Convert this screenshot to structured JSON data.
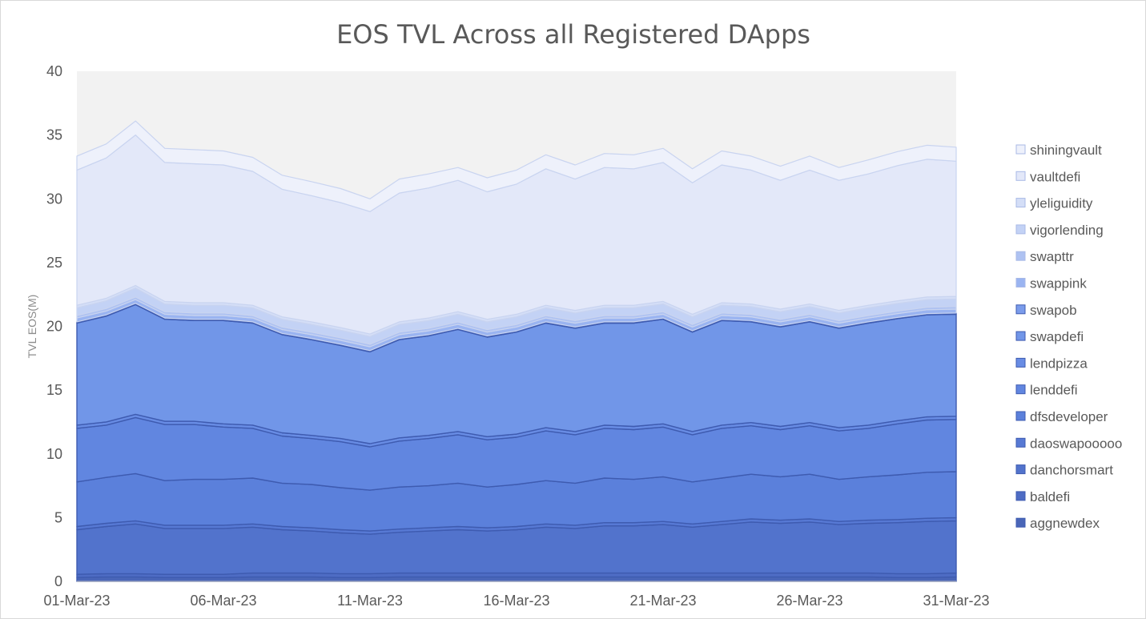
{
  "chart_data": {
    "type": "area",
    "stacked": true,
    "title": "EOS TVL Across all Registered DApps",
    "xlabel": "",
    "ylabel": "TVL EOS(M)",
    "ylim": [
      0,
      40
    ],
    "yticks": [
      0,
      5,
      10,
      15,
      20,
      25,
      30,
      35,
      40
    ],
    "x": [
      "01-Mar-23",
      "02-Mar-23",
      "03-Mar-23",
      "04-Mar-23",
      "05-Mar-23",
      "06-Mar-23",
      "07-Mar-23",
      "08-Mar-23",
      "09-Mar-23",
      "10-Mar-23",
      "11-Mar-23",
      "12-Mar-23",
      "13-Mar-23",
      "14-Mar-23",
      "15-Mar-23",
      "16-Mar-23",
      "17-Mar-23",
      "18-Mar-23",
      "19-Mar-23",
      "20-Mar-23",
      "21-Mar-23",
      "22-Mar-23",
      "23-Mar-23",
      "24-Mar-23",
      "25-Mar-23",
      "26-Mar-23",
      "27-Mar-23",
      "28-Mar-23",
      "29-Mar-23",
      "30-Mar-23",
      "31-Mar-23"
    ],
    "xtick_labels": [
      "01-Mar-23",
      "06-Mar-23",
      "11-Mar-23",
      "16-Mar-23",
      "21-Mar-23",
      "26-Mar-23",
      "31-Mar-23"
    ],
    "xtick_indices": [
      0,
      5,
      10,
      15,
      20,
      25,
      30
    ],
    "grid": false,
    "legend_position": "right",
    "plot_background": "#f2f2f2",
    "series": [
      {
        "name": "aggnewdex",
        "color": "#4a66b8",
        "values": [
          0.3,
          0.35,
          0.35,
          0.3,
          0.3,
          0.3,
          0.35,
          0.35,
          0.35,
          0.3,
          0.3,
          0.35,
          0.35,
          0.35,
          0.35,
          0.35,
          0.35,
          0.35,
          0.35,
          0.35,
          0.35,
          0.35,
          0.35,
          0.35,
          0.35,
          0.35,
          0.35,
          0.35,
          0.3,
          0.3,
          0.35
        ]
      },
      {
        "name": "baldefi",
        "color": "#4e6cc4",
        "values": [
          0.25,
          0.25,
          0.25,
          0.25,
          0.25,
          0.25,
          0.3,
          0.3,
          0.3,
          0.3,
          0.3,
          0.3,
          0.3,
          0.3,
          0.3,
          0.3,
          0.3,
          0.3,
          0.3,
          0.3,
          0.3,
          0.3,
          0.3,
          0.3,
          0.3,
          0.3,
          0.3,
          0.3,
          0.3,
          0.3,
          0.3
        ]
      },
      {
        "name": "danchorsmart",
        "color": "#5273cc",
        "values": [
          3.5,
          3.7,
          3.9,
          3.6,
          3.6,
          3.6,
          3.6,
          3.4,
          3.3,
          3.2,
          3.1,
          3.2,
          3.3,
          3.4,
          3.3,
          3.4,
          3.6,
          3.5,
          3.7,
          3.7,
          3.8,
          3.6,
          3.8,
          4.0,
          3.9,
          4.0,
          3.8,
          3.9,
          4.0,
          4.1,
          4.1
        ]
      },
      {
        "name": "daoswapooooo",
        "color": "#5779d4",
        "values": [
          0.25,
          0.25,
          0.25,
          0.25,
          0.25,
          0.25,
          0.25,
          0.25,
          0.25,
          0.25,
          0.25,
          0.25,
          0.25,
          0.25,
          0.25,
          0.25,
          0.25,
          0.25,
          0.25,
          0.25,
          0.25,
          0.25,
          0.25,
          0.25,
          0.25,
          0.25,
          0.25,
          0.25,
          0.25,
          0.25,
          0.25
        ]
      },
      {
        "name": "dfsdeveloper",
        "color": "#5b80db",
        "values": [
          3.5,
          3.6,
          3.7,
          3.5,
          3.6,
          3.6,
          3.6,
          3.4,
          3.4,
          3.3,
          3.2,
          3.3,
          3.3,
          3.4,
          3.2,
          3.3,
          3.4,
          3.3,
          3.5,
          3.4,
          3.5,
          3.3,
          3.4,
          3.5,
          3.4,
          3.5,
          3.3,
          3.4,
          3.5,
          3.6,
          3.6
        ]
      },
      {
        "name": "lenddefi",
        "color": "#6186e0",
        "values": [
          4.2,
          4.1,
          4.4,
          4.4,
          4.3,
          4.1,
          3.9,
          3.7,
          3.6,
          3.6,
          3.4,
          3.6,
          3.7,
          3.8,
          3.7,
          3.7,
          3.9,
          3.8,
          3.9,
          3.9,
          3.9,
          3.7,
          3.9,
          3.8,
          3.7,
          3.8,
          3.8,
          3.8,
          4.0,
          4.1,
          4.1
        ]
      },
      {
        "name": "lendpizza",
        "color": "#688ce4",
        "values": [
          0.25,
          0.25,
          0.25,
          0.25,
          0.25,
          0.25,
          0.25,
          0.25,
          0.25,
          0.25,
          0.25,
          0.25,
          0.25,
          0.25,
          0.25,
          0.25,
          0.25,
          0.25,
          0.25,
          0.25,
          0.25,
          0.25,
          0.25,
          0.25,
          0.25,
          0.25,
          0.25,
          0.25,
          0.25,
          0.25,
          0.25
        ]
      },
      {
        "name": "swapdefi",
        "color": "#7196e8",
        "values": [
          8.0,
          8.3,
          8.6,
          8.0,
          7.9,
          8.1,
          8.0,
          7.7,
          7.5,
          7.3,
          7.2,
          7.7,
          7.8,
          8.0,
          7.8,
          8.0,
          8.2,
          8.1,
          8.0,
          8.1,
          8.2,
          7.8,
          8.2,
          7.9,
          7.8,
          7.9,
          7.8,
          8.0,
          8.0,
          8.0,
          8.0
        ]
      },
      {
        "name": "swapob",
        "color": "#7b9ceb",
        "values": [
          0.1,
          0.1,
          0.1,
          0.1,
          0.1,
          0.1,
          0.1,
          0.1,
          0.1,
          0.1,
          0.1,
          0.1,
          0.1,
          0.1,
          0.1,
          0.1,
          0.1,
          0.1,
          0.1,
          0.1,
          0.1,
          0.1,
          0.1,
          0.1,
          0.1,
          0.1,
          0.1,
          0.1,
          0.1,
          0.1,
          0.1
        ]
      },
      {
        "name": "swappink",
        "color": "#9ab4f1",
        "values": [
          0.3,
          0.3,
          0.3,
          0.3,
          0.3,
          0.3,
          0.3,
          0.3,
          0.3,
          0.3,
          0.3,
          0.3,
          0.3,
          0.3,
          0.3,
          0.3,
          0.3,
          0.3,
          0.3,
          0.3,
          0.3,
          0.3,
          0.3,
          0.3,
          0.3,
          0.3,
          0.3,
          0.3,
          0.3,
          0.3,
          0.3
        ]
      },
      {
        "name": "swapttr",
        "color": "#aec2f2",
        "values": [
          0.2,
          0.2,
          0.2,
          0.2,
          0.2,
          0.2,
          0.2,
          0.2,
          0.2,
          0.2,
          0.2,
          0.2,
          0.2,
          0.2,
          0.2,
          0.2,
          0.2,
          0.2,
          0.2,
          0.2,
          0.2,
          0.2,
          0.2,
          0.2,
          0.2,
          0.2,
          0.2,
          0.2,
          0.2,
          0.2,
          0.2
        ]
      },
      {
        "name": "vigorlending",
        "color": "#c3d2f5",
        "values": [
          0.6,
          0.6,
          0.7,
          0.6,
          0.6,
          0.6,
          0.6,
          0.6,
          0.6,
          0.6,
          0.6,
          0.6,
          0.6,
          0.6,
          0.6,
          0.6,
          0.6,
          0.6,
          0.6,
          0.6,
          0.6,
          0.6,
          0.6,
          0.6,
          0.6,
          0.6,
          0.6,
          0.6,
          0.6,
          0.6,
          0.6
        ]
      },
      {
        "name": "yleliguidity",
        "color": "#d4def7",
        "values": [
          0.2,
          0.2,
          0.2,
          0.2,
          0.2,
          0.2,
          0.2,
          0.2,
          0.2,
          0.2,
          0.2,
          0.2,
          0.2,
          0.2,
          0.2,
          0.2,
          0.2,
          0.2,
          0.2,
          0.2,
          0.2,
          0.2,
          0.2,
          0.2,
          0.2,
          0.2,
          0.2,
          0.2,
          0.2,
          0.2,
          0.2
        ]
      },
      {
        "name": "vaultdefi",
        "color": "#e3e8f9",
        "values": [
          10.6,
          11.0,
          11.8,
          10.9,
          10.9,
          10.8,
          10.5,
          10.0,
          9.9,
          9.8,
          9.6,
          10.1,
          10.2,
          10.3,
          10.0,
          10.2,
          10.7,
          10.3,
          10.8,
          10.7,
          10.9,
          10.3,
          10.8,
          10.5,
          10.1,
          10.5,
          10.2,
          10.3,
          10.6,
          10.8,
          10.6
        ]
      },
      {
        "name": "shiningvault",
        "color": "#eef1fb",
        "values": [
          1.1,
          1.1,
          1.1,
          1.1,
          1.1,
          1.1,
          1.1,
          1.1,
          1.1,
          1.1,
          1.0,
          1.1,
          1.1,
          1.0,
          1.1,
          1.1,
          1.1,
          1.1,
          1.1,
          1.1,
          1.1,
          1.1,
          1.1,
          1.1,
          1.1,
          1.1,
          1.0,
          1.1,
          1.1,
          1.1,
          1.1
        ]
      }
    ]
  }
}
